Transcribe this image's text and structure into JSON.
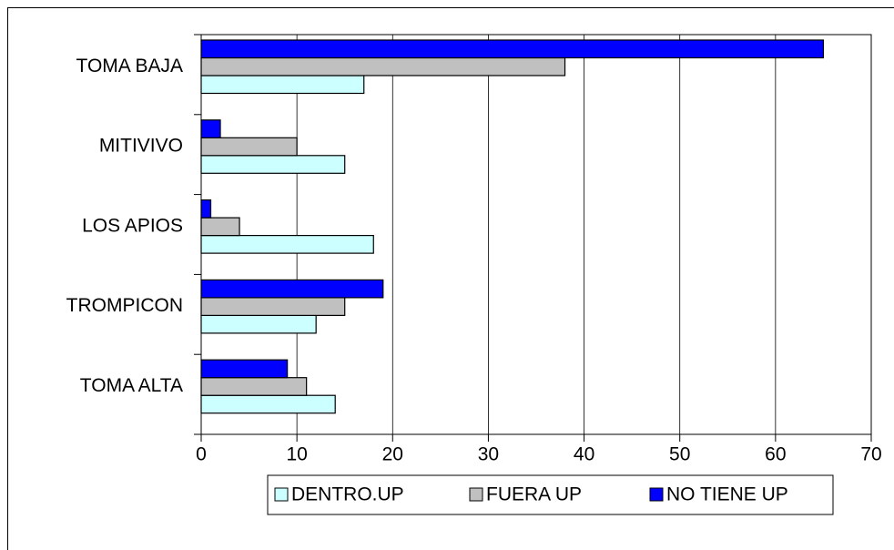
{
  "chart_data": {
    "type": "bar",
    "orientation": "horizontal",
    "categories": [
      "TOMA BAJA",
      "MITIVIVO",
      "LOS APIOS",
      "TROMPICON",
      "TOMA ALTA"
    ],
    "series": [
      {
        "name": "DENTRO.UP",
        "color": "#ccffff",
        "values": [
          17,
          15,
          18,
          12,
          14
        ]
      },
      {
        "name": "FUERA UP",
        "color": "#c0c0c0",
        "values": [
          38,
          10,
          4,
          15,
          11
        ]
      },
      {
        "name": "NO TIENE UP",
        "color": "#0000ff",
        "values": [
          65,
          2,
          1,
          19,
          9
        ]
      }
    ],
    "xlim": [
      0,
      70
    ],
    "xticks": [
      0,
      10,
      20,
      30,
      40,
      50,
      60,
      70
    ],
    "grid": true,
    "legend": "bottom"
  }
}
